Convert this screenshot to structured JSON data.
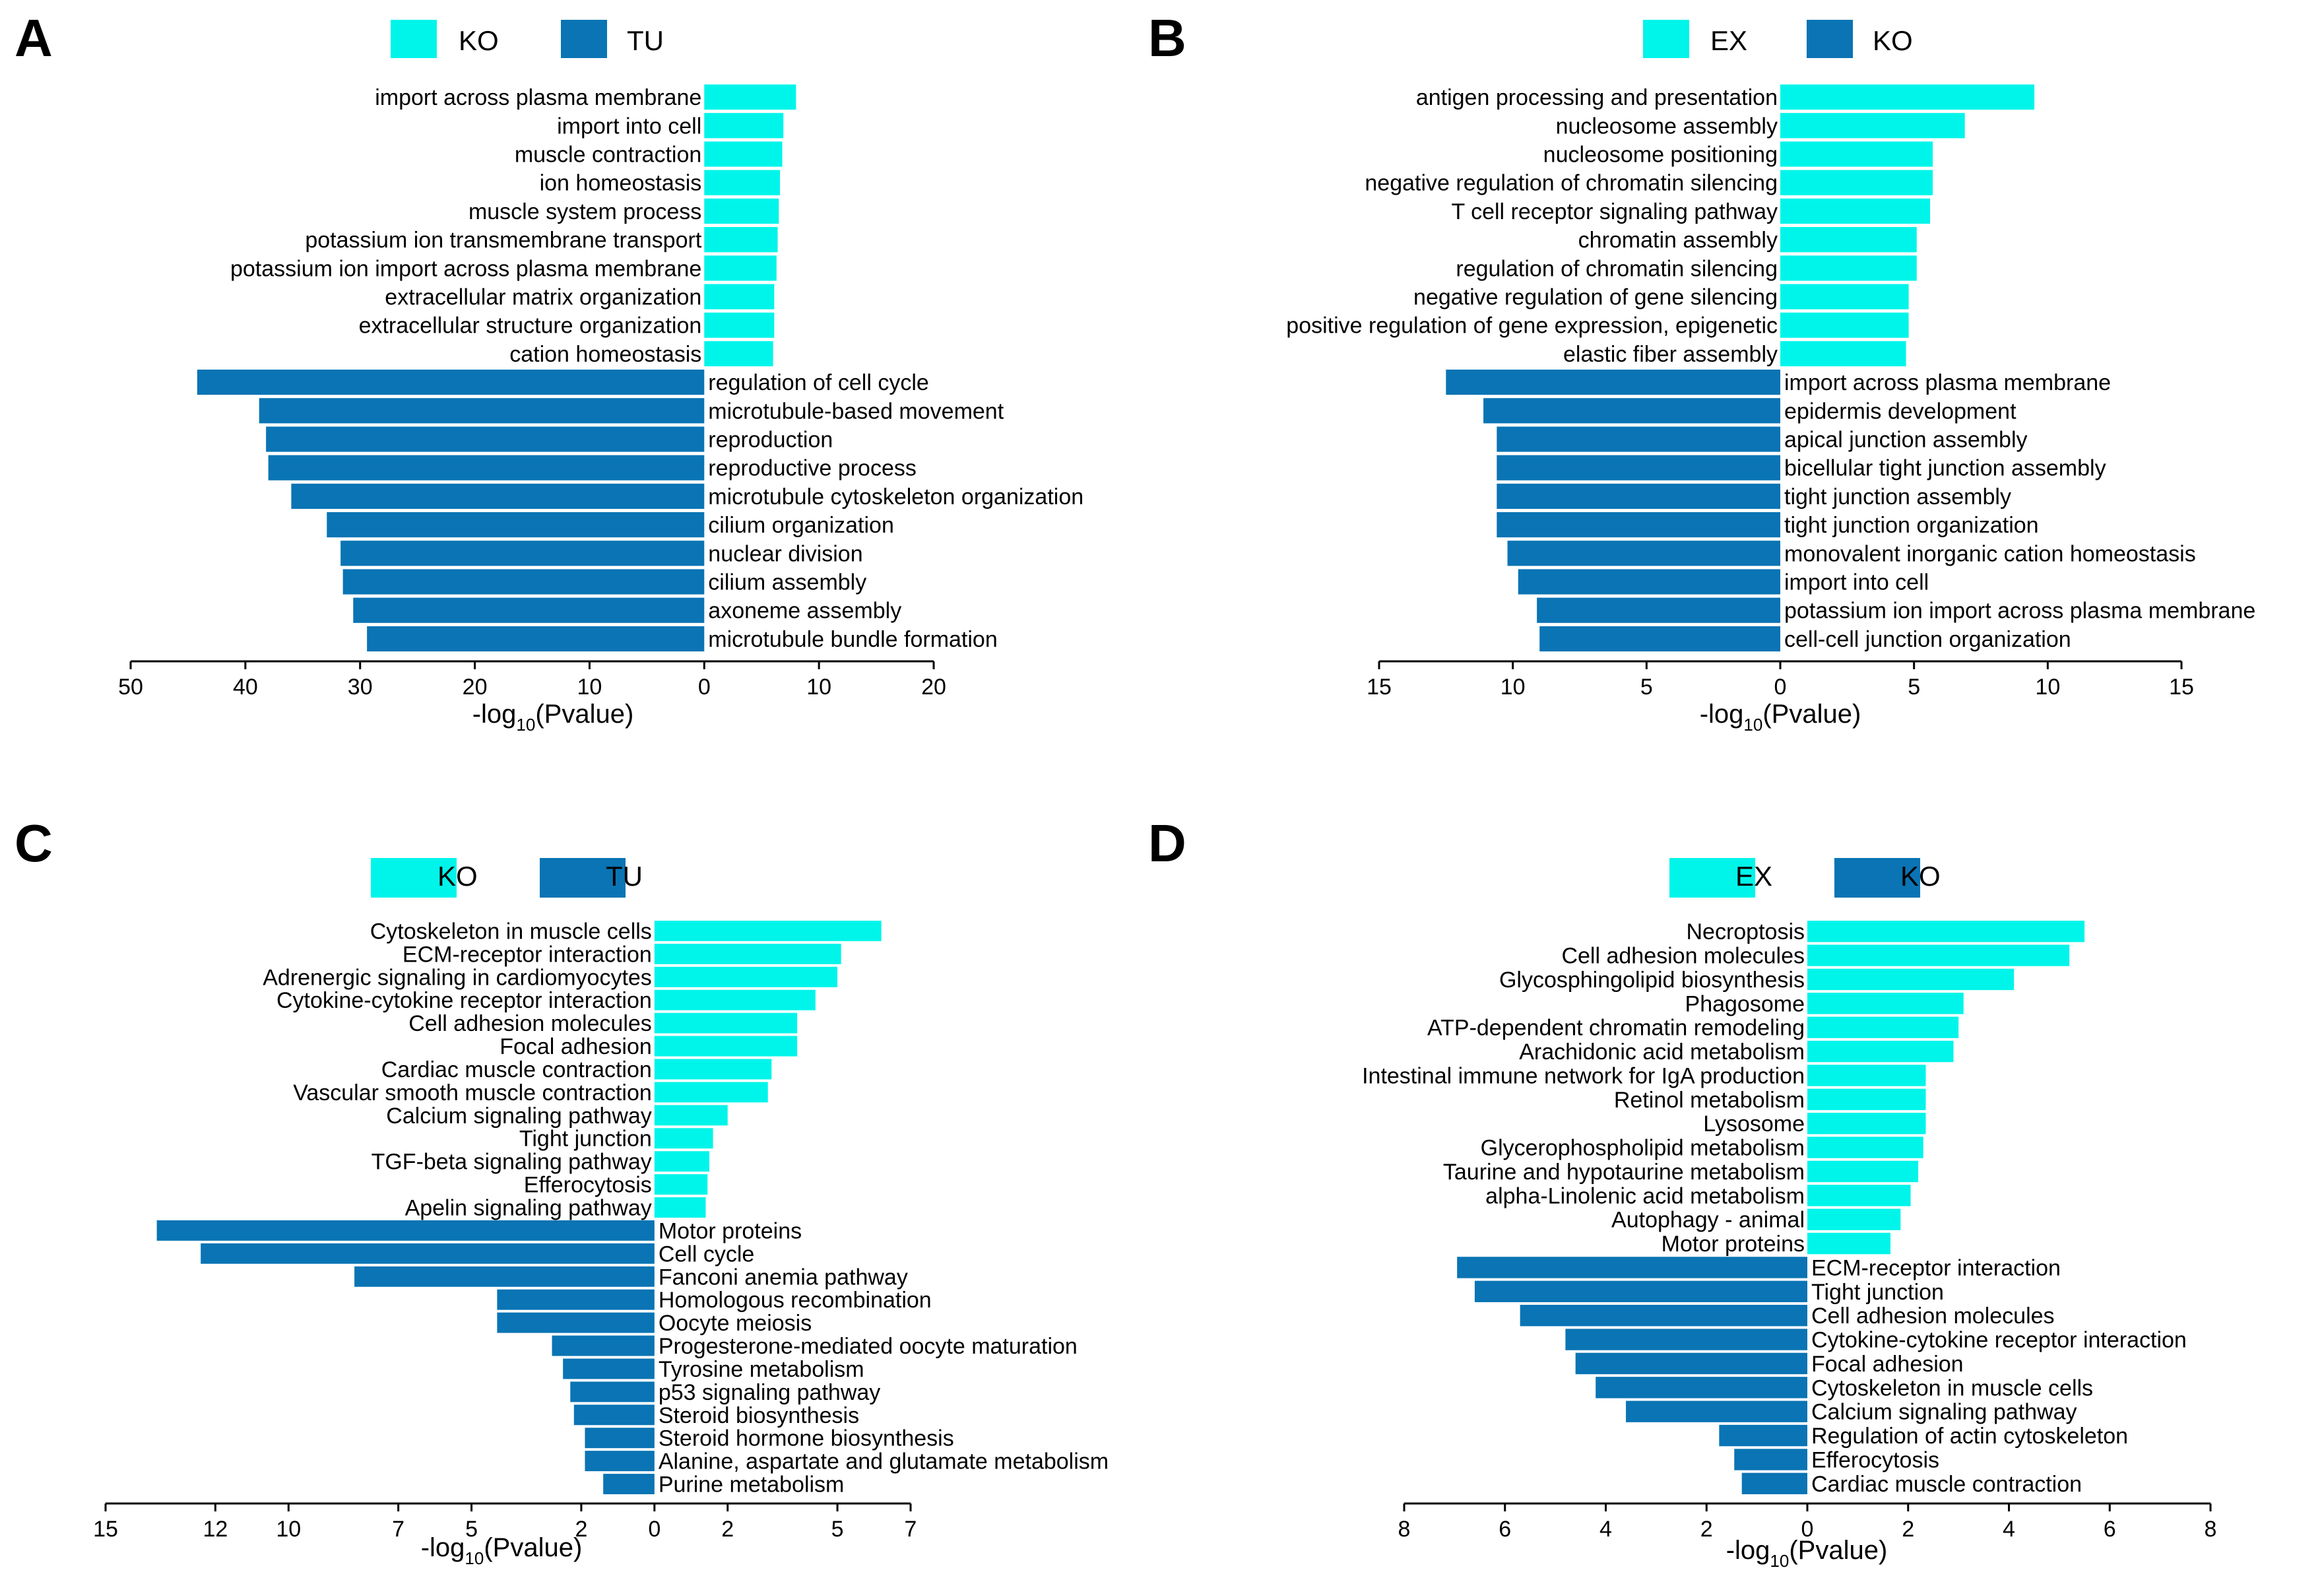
{
  "colors": {
    "up": "#00f5ea",
    "down": "#0a74b4"
  },
  "chart_data": [
    {
      "type": "bar",
      "panel": "A",
      "legend": [
        "KO",
        "TU"
      ],
      "xlabel_prefix": "-log",
      "xlabel_sub": "10",
      "xlabel_suffix": "(Pvalue)",
      "xlim": [
        -50,
        20
      ],
      "ticks": [
        -50,
        -40,
        -30,
        -20,
        -10,
        0,
        10,
        20
      ],
      "tick_labels": [
        "50",
        "40",
        "30",
        "20",
        "10",
        "0",
        "10",
        "20"
      ],
      "up": {
        "name": "KO",
        "categories": [
          "import across plasma membrane",
          "import into cell",
          "muscle contraction",
          "ion homeostasis",
          "muscle system process",
          "potassium ion transmembrane transport",
          "potassium ion import across plasma membrane",
          "extracellular matrix organization",
          "extracellular structure organization",
          "cation homeostasis"
        ],
        "values": [
          8.0,
          6.9,
          6.8,
          6.6,
          6.5,
          6.4,
          6.3,
          6.1,
          6.1,
          6.0
        ]
      },
      "down": {
        "name": "TU",
        "categories": [
          "regulation of cell cycle",
          "microtubule-based movement",
          "reproduction",
          "reproductive process",
          "microtubule cytoskeleton organization",
          "cilium organization",
          "nuclear division",
          "cilium assembly",
          "axoneme assembly",
          "microtubule bundle formation"
        ],
        "values": [
          44.2,
          38.8,
          38.2,
          38.0,
          36.0,
          32.9,
          31.7,
          31.5,
          30.6,
          29.4
        ]
      }
    },
    {
      "type": "bar",
      "panel": "B",
      "legend": [
        "EX",
        "KO"
      ],
      "xlabel_prefix": "-log",
      "xlabel_sub": "10",
      "xlabel_suffix": "(Pvalue)",
      "xlim": [
        -15,
        15
      ],
      "ticks": [
        -15,
        -10,
        -5,
        0,
        5,
        10,
        15
      ],
      "tick_labels": [
        "15",
        "10",
        "5",
        "0",
        "5",
        "10",
        "15"
      ],
      "up": {
        "name": "EX",
        "categories": [
          "antigen processing and presentation",
          "nucleosome assembly",
          "nucleosome positioning",
          "negative regulation of chromatin silencing",
          "T cell receptor signaling pathway",
          "chromatin assembly",
          "regulation of chromatin silencing",
          "negative regulation of gene silencing",
          "positive regulation of gene expression, epigenetic",
          "elastic fiber assembly"
        ],
        "values": [
          9.5,
          6.9,
          5.7,
          5.7,
          5.6,
          5.1,
          5.1,
          4.8,
          4.8,
          4.7
        ]
      },
      "down": {
        "name": "KO",
        "categories": [
          "import across plasma membrane",
          "epidermis development",
          "apical junction assembly",
          "bicellular tight junction assembly",
          "tight junction assembly",
          "tight junction organization",
          "monovalent inorganic cation homeostasis",
          "import into cell",
          "potassium ion import across plasma membrane",
          "cell-cell junction organization"
        ],
        "values": [
          12.5,
          11.1,
          10.6,
          10.6,
          10.6,
          10.6,
          10.2,
          9.8,
          9.1,
          9.0
        ]
      }
    },
    {
      "type": "bar",
      "panel": "C",
      "legend": [
        "KO",
        "TU"
      ],
      "xlabel_prefix": "-log",
      "xlabel_sub": "10",
      "xlabel_suffix": "(Pvalue)",
      "xlim": [
        -15,
        7
      ],
      "ticks": [
        -15,
        -12,
        -10,
        -7,
        -5,
        -2,
        0,
        2,
        5,
        7
      ],
      "tick_labels": [
        "15",
        "12",
        "10",
        "7",
        "5",
        "2",
        "0",
        "2",
        "5",
        "7"
      ],
      "up": {
        "name": "KO",
        "categories": [
          "Cytoskeleton in muscle cells",
          "ECM-receptor interaction",
          "Adrenergic signaling in cardiomyocytes",
          "Cytokine-cytokine receptor interaction",
          "Cell adhesion molecules",
          "Focal adhesion",
          "Cardiac muscle contraction",
          "Vascular smooth muscle contraction",
          "Calcium signaling pathway",
          "Tight junction",
          "TGF-beta signaling pathway",
          "Efferocytosis",
          "Apelin signaling pathway"
        ],
        "values": [
          6.2,
          5.1,
          5.0,
          4.4,
          3.9,
          3.9,
          3.2,
          3.1,
          2.0,
          1.6,
          1.5,
          1.45,
          1.4
        ]
      },
      "down": {
        "name": "TU",
        "categories": [
          "Motor proteins",
          "Cell cycle",
          "Fanconi anemia pathway",
          "Homologous recombination",
          "Oocyte meiosis",
          "Progesterone-mediated oocyte maturation",
          "Tyrosine metabolism",
          "p53 signaling pathway",
          "Steroid biosynthesis",
          "Steroid hormone biosynthesis",
          "Alanine, aspartate and glutamate metabolism",
          "Purine metabolism"
        ],
        "values": [
          13.6,
          12.4,
          8.2,
          4.3,
          4.3,
          2.8,
          2.5,
          2.3,
          2.2,
          1.9,
          1.9,
          1.4
        ]
      }
    },
    {
      "type": "bar",
      "panel": "D",
      "legend": [
        "EX",
        "KO"
      ],
      "xlabel_prefix": "-log",
      "xlabel_sub": "10",
      "xlabel_suffix": "(Pvalue)",
      "xlim": [
        -8,
        8
      ],
      "ticks": [
        -8,
        -6,
        -4,
        -2,
        0,
        2,
        4,
        6,
        8
      ],
      "tick_labels": [
        "8",
        "6",
        "4",
        "2",
        "0",
        "2",
        "4",
        "6",
        "8"
      ],
      "up": {
        "name": "EX",
        "categories": [
          "Necroptosis",
          "Cell adhesion molecules",
          "Glycosphingolipid biosynthesis",
          "Phagosome",
          "ATP-dependent chromatin remodeling",
          "Arachidonic acid metabolism",
          "Intestinal immune network for IgA production",
          "Retinol metabolism",
          "Lysosome",
          "Glycerophospholipid metabolism",
          "Taurine and hypotaurine metabolism",
          "alpha-Linolenic acid metabolism",
          "Autophagy - animal",
          "Motor proteins"
        ],
        "values": [
          5.5,
          5.2,
          4.1,
          3.1,
          3.0,
          2.9,
          2.35,
          2.35,
          2.35,
          2.3,
          2.2,
          2.05,
          1.85,
          1.65
        ]
      },
      "down": {
        "name": "KO",
        "categories": [
          "ECM-receptor interaction",
          "Tight junction",
          "Cell adhesion molecules",
          "Cytokine-cytokine receptor interaction",
          "Focal adhesion",
          "Cytoskeleton in muscle cells",
          "Calcium signaling pathway",
          "Regulation of actin cytoskeleton",
          "Efferocytosis",
          "Cardiac muscle contraction"
        ],
        "values": [
          6.95,
          6.6,
          5.7,
          4.8,
          4.6,
          4.2,
          3.6,
          1.75,
          1.45,
          1.3
        ]
      }
    }
  ]
}
